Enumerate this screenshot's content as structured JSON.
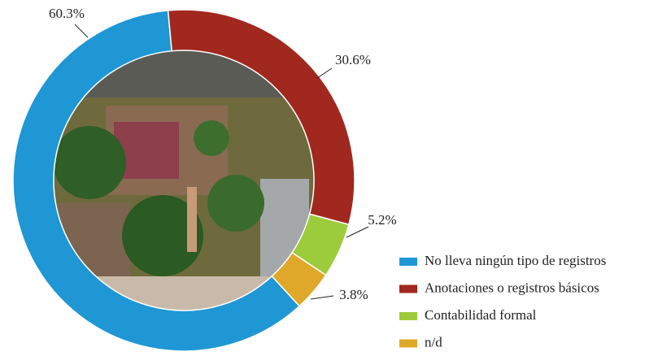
{
  "chart_data": {
    "type": "donut",
    "categories": [
      "No lleva ningún tipo de registros",
      "Anotaciones o registros básicos",
      "Contabilidad formal",
      "n/d"
    ],
    "values": [
      60.3,
      30.6,
      5.2,
      3.8
    ],
    "value_labels": [
      "60.3%",
      "30.6%",
      "5.2%",
      "3.8%"
    ],
    "colors": [
      "#1f97d4",
      "#a1281e",
      "#9ccb3b",
      "#e0a82a"
    ],
    "legend": "right"
  }
}
